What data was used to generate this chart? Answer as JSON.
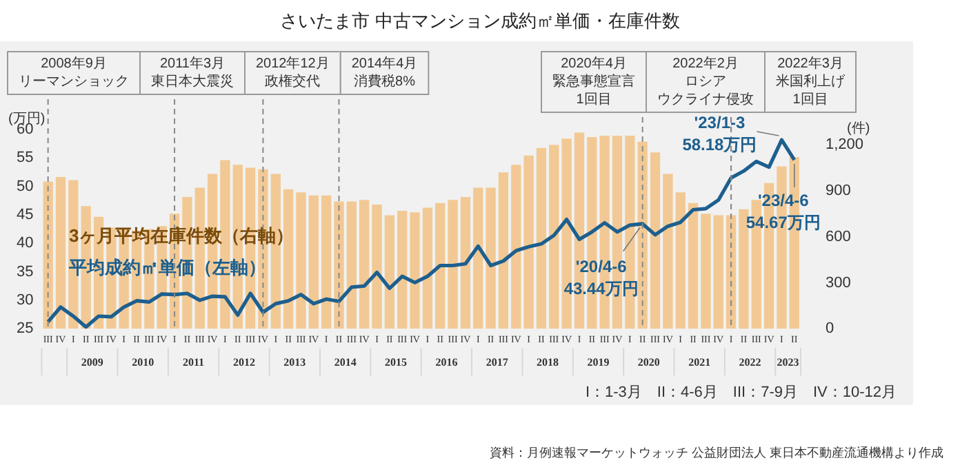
{
  "chart_data": {
    "type": "bar",
    "title": "さいたま市 中古マンション成約㎡単価・在庫件数",
    "ylabel": "(万円)",
    "y2label": "(件)",
    "categories": [
      "III",
      "IV",
      "I",
      "II",
      "III",
      "IV",
      "I",
      "II",
      "III",
      "IV",
      "I",
      "II",
      "III",
      "IV",
      "I",
      "II",
      "III",
      "IV",
      "I",
      "II",
      "III",
      "IV",
      "I",
      "II",
      "III",
      "IV",
      "I",
      "II",
      "III",
      "IV",
      "I",
      "II",
      "III",
      "IV",
      "I",
      "II",
      "III",
      "IV",
      "I",
      "II",
      "III",
      "IV",
      "I",
      "II",
      "III",
      "IV",
      "I",
      "II",
      "III",
      "IV",
      "I",
      "II",
      "III",
      "IV",
      "I",
      "II",
      "III",
      "IV",
      "I",
      "II"
    ],
    "series": [
      {
        "name": "3ヶ月平均在庫件数（右軸）",
        "axis": "y2",
        "color": "#f2c994",
        "values": [
          960,
          990,
          970,
          800,
          730,
          660,
          650,
          640,
          650,
          670,
          750,
          860,
          920,
          1010,
          1100,
          1070,
          1050,
          1040,
          1010,
          910,
          890,
          870,
          870,
          830,
          830,
          840,
          810,
          740,
          770,
          760,
          790,
          820,
          840,
          860,
          920,
          920,
          1020,
          1070,
          1130,
          1180,
          1200,
          1240,
          1280,
          1250,
          1260,
          1260,
          1260,
          1220,
          1150,
          1010,
          890,
          820,
          750,
          740,
          740,
          780,
          840,
          950,
          1060,
          1120
        ]
      },
      {
        "name": "平均成約㎡単価（左軸）",
        "type": "line",
        "color": "#1d5f8e",
        "values": [
          26.2,
          28.8,
          27.2,
          25.3,
          27.2,
          27.1,
          28.8,
          29.9,
          29.7,
          31.1,
          31.0,
          31.2,
          30.0,
          30.7,
          30.6,
          27.4,
          31.2,
          27.9,
          29.4,
          29.9,
          31.0,
          29.4,
          30.2,
          29.8,
          32.3,
          32.5,
          34.9,
          32.1,
          34.2,
          33.1,
          34.2,
          36.1,
          36.1,
          36.4,
          39.5,
          36.1,
          36.9,
          38.7,
          39.4,
          39.9,
          41.4,
          44.2,
          40.7,
          42.0,
          43.6,
          42.0,
          43.2,
          43.44,
          41.5,
          43.0,
          43.7,
          45.9,
          46.1,
          47.6,
          51.5,
          52.7,
          54.4,
          53.4,
          58.18,
          54.67
        ]
      }
    ],
    "ylim": [
      25,
      60
    ],
    "yticks": [
      25,
      30,
      35,
      40,
      45,
      50,
      55,
      60
    ],
    "y2lim": [
      0,
      1300
    ],
    "y2ticks": [
      0,
      300,
      600,
      900,
      {
        "value": 1200,
        "label": "1,200"
      }
    ],
    "legend": "left",
    "marker": "none",
    "grid": "x",
    "annotations": [
      "2008年9月",
      "リーマンショック",
      "2011年3月",
      "東日本大震災",
      "2012年12月",
      "政権交代",
      "2014年4月",
      "消費税8%",
      "2020年4月",
      "緊急事態宣言",
      "1回目",
      "2022年2月",
      "ロシア",
      "ウクライナ侵攻",
      "2022年3月",
      "米国利上げ",
      "1回目",
      "'23/1-3",
      "58.18万円",
      "'23/4-6",
      "54.67万円",
      "'20/4-6",
      "43.44万円",
      "I：1-3月　II：4-6月　III：7-9月　IV：10-12月",
      "資料：月例速報マーケットウォッチ 公益財団法人 東日本不動産流通機構より作成",
      "2009",
      "2010",
      "2011",
      "2012",
      "2013",
      "2014",
      "2015",
      "2016",
      "2017",
      "2018",
      "2019",
      "2020",
      "2021",
      "2022",
      "2023"
    ]
  }
}
